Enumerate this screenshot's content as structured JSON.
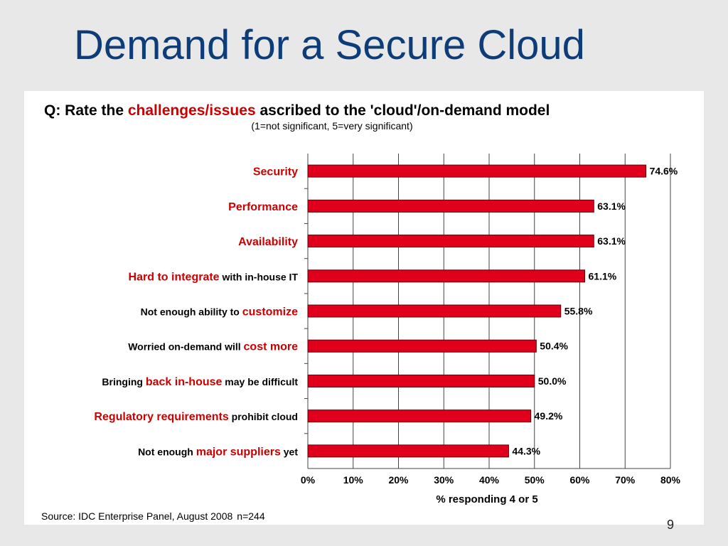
{
  "slide": {
    "title": "Demand for a Secure Cloud",
    "page_number": "9"
  },
  "colors": {
    "title": "#0d3d78",
    "bar_fill": "#e0001b",
    "bar_stroke": "#5a0008",
    "highlight_text": "#cc0000",
    "plain_text": "#000000",
    "grid": "#444444",
    "background": "#e8e8e8"
  },
  "chart_data": {
    "type": "bar",
    "orientation": "horizontal",
    "question": {
      "prefix": "Q: Rate the ",
      "highlight": "challenges/issues",
      "suffix": " ascribed to the 'cloud'/on-demand model"
    },
    "subtitle": "(1=not significant, 5=very significant)",
    "categories": [
      [
        {
          "text": "Security",
          "hl": true
        }
      ],
      [
        {
          "text": "Performance",
          "hl": true
        }
      ],
      [
        {
          "text": "Availability",
          "hl": true
        }
      ],
      [
        {
          "text": "Hard to integrate",
          "hl": true
        },
        {
          "text": " with in-house IT",
          "hl": false
        }
      ],
      [
        {
          "text": "Not enough ability to ",
          "hl": false
        },
        {
          "text": "customize",
          "hl": true
        }
      ],
      [
        {
          "text": "Worried on-demand will ",
          "hl": false
        },
        {
          "text": "cost more",
          "hl": true
        }
      ],
      [
        {
          "text": "Bringing ",
          "hl": false
        },
        {
          "text": "back in-house",
          "hl": true
        },
        {
          "text": " may be difficult",
          "hl": false
        }
      ],
      [
        {
          "text": "Regulatory requirements",
          "hl": true
        },
        {
          "text": " prohibit cloud",
          "hl": false
        }
      ],
      [
        {
          "text": "Not enough ",
          "hl": false
        },
        {
          "text": "major suppliers",
          "hl": true
        },
        {
          "text": " yet",
          "hl": false
        }
      ]
    ],
    "values": [
      74.6,
      63.1,
      63.1,
      61.1,
      55.8,
      50.4,
      50.0,
      49.2,
      44.3
    ],
    "value_labels": [
      "74.6%",
      "63.1%",
      "63.1%",
      "61.1%",
      "55.8%",
      "50.4%",
      "50.0%",
      "49.2%",
      "44.3%"
    ],
    "xlim": [
      0,
      80
    ],
    "xticks": [
      0,
      10,
      20,
      30,
      40,
      50,
      60,
      70,
      80
    ],
    "xtick_labels": [
      "0%",
      "10%",
      "20%",
      "30%",
      "40%",
      "50%",
      "60%",
      "70%",
      "80%"
    ],
    "xlabel": "% responding 4 or 5",
    "grid": true,
    "source": {
      "text": "Source: IDC Enterprise Panel, August 2008",
      "n": "n=244"
    }
  }
}
